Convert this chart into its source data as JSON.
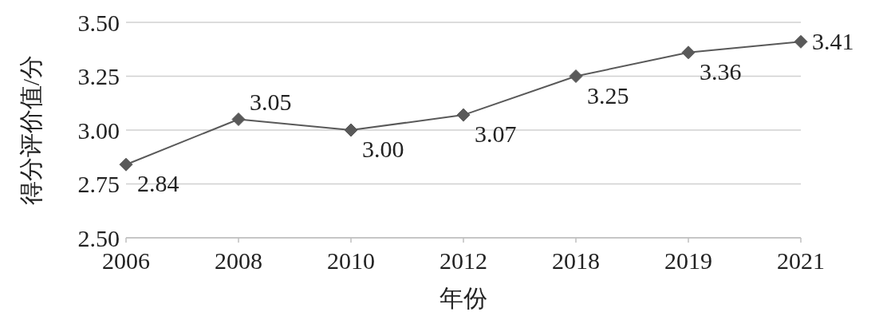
{
  "chart_data": {
    "type": "line",
    "xlabel": "年份",
    "ylabel": "得分评价值/分",
    "categories": [
      "2006",
      "2008",
      "2010",
      "2012",
      "2018",
      "2019",
      "2021"
    ],
    "series": [
      {
        "color": "#595959",
        "values": [
          2.84,
          3.05,
          3.0,
          3.07,
          3.25,
          3.36,
          3.41
        ]
      }
    ],
    "ylim": [
      2.5,
      3.5
    ],
    "yticks": [
      {
        "value": 2.5,
        "label": "2.50"
      },
      {
        "value": 2.75,
        "label": "2.75"
      },
      {
        "value": 3,
        "label": "3.00"
      },
      {
        "value": 3.25,
        "label": "3.25"
      },
      {
        "value": 3.5,
        "label": "3.50"
      }
    ],
    "value_labels": [
      "2.84",
      "3.05",
      "3.00",
      "3.07",
      "3.25",
      "3.36",
      "3.41"
    ],
    "grid": "y",
    "marker": "diamond",
    "line_style": "solid"
  }
}
